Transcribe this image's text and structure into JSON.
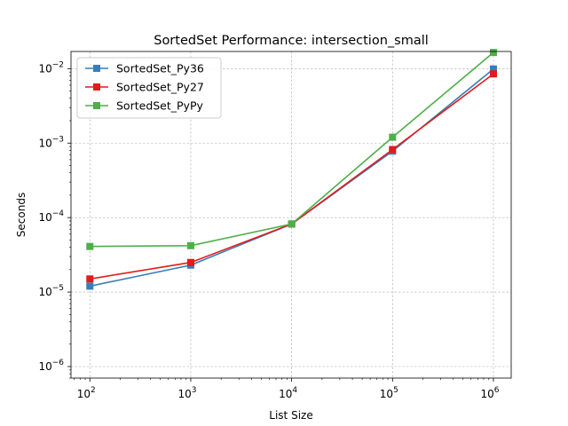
{
  "chart_data": {
    "type": "line",
    "title": "SortedSet Performance: intersection_small",
    "xlabel": "List Size",
    "ylabel": "Seconds",
    "xscale": "log",
    "yscale": "log",
    "xlim": [
      65,
      1500000
    ],
    "ylim": [
      7e-07,
      0.017
    ],
    "x": [
      100,
      1000,
      10000,
      100000,
      1000000
    ],
    "x_ticks": [
      {
        "value": 100,
        "base": "10",
        "exp": "2"
      },
      {
        "value": 1000,
        "base": "10",
        "exp": "3"
      },
      {
        "value": 10000,
        "base": "10",
        "exp": "4"
      },
      {
        "value": 100000,
        "base": "10",
        "exp": "5"
      },
      {
        "value": 1000000,
        "base": "10",
        "exp": "6"
      }
    ],
    "y_ticks": [
      {
        "value": 1e-06,
        "base": "10",
        "exp": "−6"
      },
      {
        "value": 1e-05,
        "base": "10",
        "exp": "−5"
      },
      {
        "value": 0.0001,
        "base": "10",
        "exp": "−4"
      },
      {
        "value": 0.001,
        "base": "10",
        "exp": "−3"
      },
      {
        "value": 0.01,
        "base": "10",
        "exp": "−2"
      }
    ],
    "grid": true,
    "legend_position": "top-left",
    "series": [
      {
        "name": "SortedSet_Py36",
        "color": "#377eb8",
        "values": [
          1.2e-05,
          2.3e-05,
          8.2e-05,
          0.00078,
          0.0099
        ]
      },
      {
        "name": "SortedSet_Py27",
        "color": "#e41a1c",
        "values": [
          1.5e-05,
          2.5e-05,
          8.2e-05,
          0.00082,
          0.0085
        ]
      },
      {
        "name": "SortedSet_PyPy",
        "color": "#4daf4a",
        "values": [
          4.1e-05,
          4.2e-05,
          8.2e-05,
          0.0012,
          0.0165
        ]
      }
    ]
  }
}
